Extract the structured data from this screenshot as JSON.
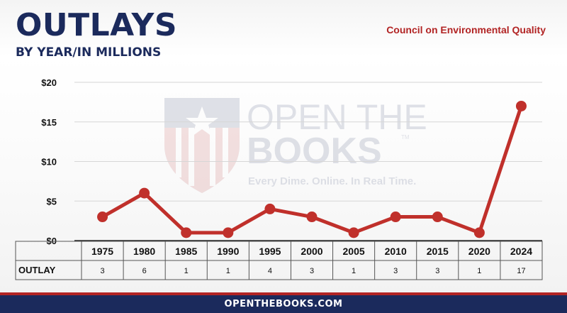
{
  "header": {
    "title": "OUTLAYS",
    "subtitle": "BY YEAR/IN MILLIONS",
    "agency": "Council on Environmental Quality"
  },
  "watermark": {
    "line1": "OPEN THE",
    "line2": "BOOKS",
    "tm": "TM",
    "tagline": "Every Dime. Online. In Real Time."
  },
  "footer": {
    "text": "OPENTHEBOOKS.COM"
  },
  "table": {
    "row_label": "OUTLAY"
  },
  "colors": {
    "line": "#c0302b",
    "navy": "#1b2a5c",
    "red": "#b22424"
  },
  "chart_data": {
    "type": "line",
    "categories": [
      "1975",
      "1980",
      "1985",
      "1990",
      "1995",
      "2000",
      "2005",
      "2010",
      "2015",
      "2020",
      "2024"
    ],
    "series": [
      {
        "values": [
          3,
          6,
          1,
          1,
          4,
          3,
          1,
          3,
          3,
          1,
          17
        ]
      }
    ],
    "value_labels": [
      "3",
      "6",
      "1",
      "1",
      "4",
      "3",
      "1",
      "3",
      "3",
      "1",
      "17"
    ],
    "ylim": [
      0,
      20
    ],
    "yticks": [
      0,
      5,
      10,
      15,
      20
    ],
    "ytick_labels": [
      "$0",
      "$5",
      "$10",
      "$15",
      "$20"
    ],
    "grid": true,
    "title": "OUTLAYS",
    "xlabel": "",
    "ylabel": ""
  }
}
